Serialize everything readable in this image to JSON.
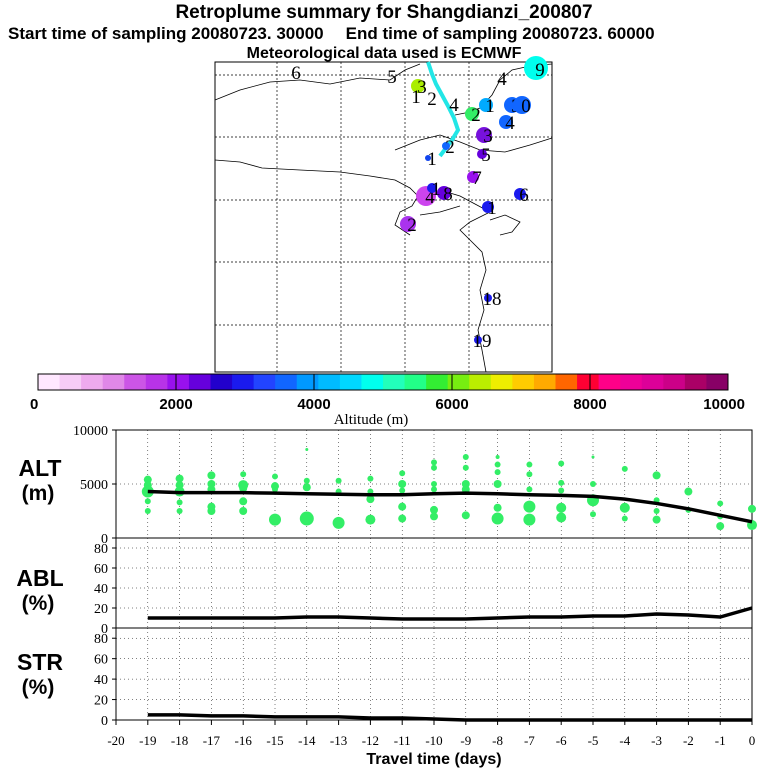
{
  "header": {
    "title": "Retroplume summary for Shangdianzi_200807",
    "start_label": "Start time of sampling 20080723. 30000",
    "end_label": "End time of sampling 20080723. 60000",
    "met_label": "Meteorological data used is ECMWF"
  },
  "colors": {
    "trajectory": "#22e6e6",
    "scatter": "#33ee66",
    "scale": [
      "#ffe8ff",
      "#f6ccf6",
      "#eeaaee",
      "#e088e8",
      "#cc55e6",
      "#b833e8",
      "#9911ee",
      "#6600dd",
      "#2200cc",
      "#1a1aee",
      "#2244ff",
      "#1166ff",
      "#0099ff",
      "#00bbff",
      "#00d8ff",
      "#00ffee",
      "#22ffbb",
      "#22ff88",
      "#33ee33",
      "#77ee11",
      "#bbee00",
      "#eeee00",
      "#ffcc00",
      "#ffaa00",
      "#ff6600",
      "#ff0033",
      "#ff0088",
      "#ee0099",
      "#dd0099",
      "#cc0088",
      "#aa0066",
      "#880066"
    ]
  },
  "map": {
    "markers": [
      {
        "label": "6",
        "color": "#00ffee"
      },
      {
        "label": "5",
        "color": "#00ffee"
      },
      {
        "label": "4",
        "color": "#00ffee"
      },
      {
        "label": "3",
        "color": "#aaee00"
      },
      {
        "label": "1",
        "color": "#1166ff"
      },
      {
        "label": "2",
        "color": "#1166ff"
      },
      {
        "label": "4",
        "color": "#1166ff"
      },
      {
        "label": "1",
        "color": "#00aaff"
      },
      {
        "label": "3",
        "color": "#1166ff"
      },
      {
        "label": "0",
        "color": "#1166ff"
      },
      {
        "label": "2",
        "color": "#33ee66"
      },
      {
        "label": "4",
        "color": "#1166ff"
      },
      {
        "label": "3",
        "color": "#7711dd"
      },
      {
        "label": "2",
        "color": "#1166ff"
      },
      {
        "label": "5",
        "color": "#6600dd"
      },
      {
        "label": "1",
        "color": "#1144ee"
      },
      {
        "label": "7",
        "color": "#9911ee"
      },
      {
        "label": "4",
        "color": "#cc44ee"
      },
      {
        "label": "8",
        "color": "#6600dd"
      },
      {
        "label": "2",
        "color": "#aa33ee"
      },
      {
        "label": "1",
        "color": "#1a1aee"
      },
      {
        "label": "1",
        "color": "#1a1aee"
      },
      {
        "label": "6",
        "color": "#1a1aee"
      },
      {
        "label": "18",
        "color": "#1a1aee"
      },
      {
        "label": "19",
        "color": "#1a1aee"
      }
    ],
    "corner_marker": {
      "label": "9",
      "color": "#00ffee"
    }
  },
  "colorbar": {
    "tick_labels": [
      "0",
      "2000",
      "4000",
      "6000",
      "8000",
      "10000"
    ],
    "title": "Altitude (m)"
  },
  "panels": {
    "alt": {
      "label_top": "ALT",
      "label_bottom": "(m)",
      "ticks": [
        "10000",
        "5000",
        "0"
      ]
    },
    "abl": {
      "label_top": "ABL",
      "label_bottom": "(%)",
      "ticks": [
        "80",
        "60",
        "40",
        "20",
        "0"
      ]
    },
    "str": {
      "label_top": "STR",
      "label_bottom": "(%)",
      "ticks": [
        "80",
        "60",
        "40",
        "20",
        "0"
      ]
    }
  },
  "chart_data": {
    "type": "line",
    "title": "Retroplume summary for Shangdianzi_200807",
    "xlabel": "Travel time (days)",
    "xlim": [
      -20,
      0
    ],
    "x_tick_labels": [
      "-20",
      "-19",
      "-18",
      "-17",
      "-16",
      "-15",
      "-14",
      "-13",
      "-12",
      "-11",
      "-10",
      "-9",
      "-8",
      "-7",
      "-6",
      "-5",
      "-4",
      "-3",
      "-2",
      "-1",
      "0"
    ],
    "series": [
      {
        "name": "ALT",
        "ylabel": "ALT (m)",
        "ylim": [
          0,
          10000
        ],
        "x": [
          -19,
          -18,
          -17,
          -16,
          -15,
          -14,
          -13,
          -12,
          -11,
          -10,
          -9,
          -8,
          -7,
          -6,
          -5,
          -4,
          -3,
          -2,
          -1,
          0
        ],
        "values": [
          4300,
          4200,
          4200,
          4200,
          4150,
          4100,
          4050,
          4000,
          4000,
          4100,
          4150,
          4100,
          4000,
          3950,
          3850,
          3600,
          3200,
          2700,
          2100,
          1500
        ]
      },
      {
        "name": "ABL",
        "ylabel": "ABL (%)",
        "ylim": [
          0,
          90
        ],
        "x": [
          -19,
          -18,
          -17,
          -16,
          -15,
          -14,
          -13,
          -12,
          -11,
          -10,
          -9,
          -8,
          -7,
          -6,
          -5,
          -4,
          -3,
          -2,
          -1,
          0
        ],
        "values": [
          10,
          10,
          10,
          10,
          10,
          11,
          11,
          10,
          9,
          9,
          9,
          10,
          11,
          11,
          12,
          12,
          14,
          13,
          11,
          20
        ]
      },
      {
        "name": "STR",
        "ylabel": "STR (%)",
        "ylim": [
          0,
          90
        ],
        "x": [
          -19,
          -18,
          -17,
          -16,
          -15,
          -14,
          -13,
          -12,
          -11,
          -10,
          -9,
          -8,
          -7,
          -6,
          -5,
          -4,
          -3,
          -2,
          -1,
          0
        ],
        "values": [
          5,
          5,
          4,
          4,
          3,
          3,
          3,
          2,
          2,
          1,
          0,
          0,
          0,
          0,
          0,
          0,
          0,
          0,
          0,
          0
        ]
      }
    ],
    "alt_scatter": [
      {
        "x": -19,
        "y": 5400,
        "s": 4
      },
      {
        "x": -19,
        "y": 4900,
        "s": 4
      },
      {
        "x": -19,
        "y": 4300,
        "s": 6
      },
      {
        "x": -19,
        "y": 3400,
        "s": 3
      },
      {
        "x": -19,
        "y": 2500,
        "s": 3
      },
      {
        "x": -18,
        "y": 5500,
        "s": 4
      },
      {
        "x": -18,
        "y": 4900,
        "s": 4
      },
      {
        "x": -18,
        "y": 4300,
        "s": 5
      },
      {
        "x": -18,
        "y": 3300,
        "s": 3
      },
      {
        "x": -18,
        "y": 2500,
        "s": 3
      },
      {
        "x": -17,
        "y": 5800,
        "s": 4
      },
      {
        "x": -17,
        "y": 5000,
        "s": 4
      },
      {
        "x": -17,
        "y": 4500,
        "s": 4
      },
      {
        "x": -17,
        "y": 2900,
        "s": 4
      },
      {
        "x": -17,
        "y": 2500,
        "s": 4
      },
      {
        "x": -16,
        "y": 5900,
        "s": 3
      },
      {
        "x": -16,
        "y": 4900,
        "s": 5
      },
      {
        "x": -16,
        "y": 4600,
        "s": 4
      },
      {
        "x": -16,
        "y": 3400,
        "s": 4
      },
      {
        "x": -16,
        "y": 2500,
        "s": 4
      },
      {
        "x": -15,
        "y": 5700,
        "s": 3
      },
      {
        "x": -15,
        "y": 4800,
        "s": 4
      },
      {
        "x": -15,
        "y": 4500,
        "s": 3
      },
      {
        "x": -15,
        "y": 1700,
        "s": 6
      },
      {
        "x": -14,
        "y": 8200,
        "s": 1.5
      },
      {
        "x": -14,
        "y": 5300,
        "s": 3
      },
      {
        "x": -14,
        "y": 4700,
        "s": 4
      },
      {
        "x": -14,
        "y": 1800,
        "s": 7
      },
      {
        "x": -13,
        "y": 5300,
        "s": 3
      },
      {
        "x": -13,
        "y": 4300,
        "s": 3
      },
      {
        "x": -13,
        "y": 1400,
        "s": 6
      },
      {
        "x": -12,
        "y": 5500,
        "s": 3
      },
      {
        "x": -12,
        "y": 4300,
        "s": 3
      },
      {
        "x": -12,
        "y": 3600,
        "s": 4
      },
      {
        "x": -12,
        "y": 1700,
        "s": 5
      },
      {
        "x": -11,
        "y": 6000,
        "s": 3
      },
      {
        "x": -11,
        "y": 5000,
        "s": 4
      },
      {
        "x": -11,
        "y": 4400,
        "s": 3
      },
      {
        "x": -11,
        "y": 2900,
        "s": 4
      },
      {
        "x": -11,
        "y": 1800,
        "s": 4
      },
      {
        "x": -10,
        "y": 7000,
        "s": 3
      },
      {
        "x": -10,
        "y": 6500,
        "s": 3
      },
      {
        "x": -10,
        "y": 5000,
        "s": 3
      },
      {
        "x": -10,
        "y": 4500,
        "s": 3
      },
      {
        "x": -10,
        "y": 2600,
        "s": 4
      },
      {
        "x": -10,
        "y": 2000,
        "s": 4
      },
      {
        "x": -9,
        "y": 7500,
        "s": 3
      },
      {
        "x": -9,
        "y": 6500,
        "s": 3
      },
      {
        "x": -9,
        "y": 5000,
        "s": 4
      },
      {
        "x": -9,
        "y": 4500,
        "s": 4
      },
      {
        "x": -9,
        "y": 2100,
        "s": 4
      },
      {
        "x": -8,
        "y": 7500,
        "s": 2
      },
      {
        "x": -8,
        "y": 6800,
        "s": 3
      },
      {
        "x": -8,
        "y": 6100,
        "s": 3
      },
      {
        "x": -8,
        "y": 5000,
        "s": 4
      },
      {
        "x": -8,
        "y": 2800,
        "s": 4
      },
      {
        "x": -8,
        "y": 1800,
        "s": 6
      },
      {
        "x": -7,
        "y": 6800,
        "s": 3
      },
      {
        "x": -7,
        "y": 5900,
        "s": 3
      },
      {
        "x": -7,
        "y": 4500,
        "s": 3
      },
      {
        "x": -7,
        "y": 2900,
        "s": 6
      },
      {
        "x": -7,
        "y": 1700,
        "s": 6
      },
      {
        "x": -6,
        "y": 6900,
        "s": 3
      },
      {
        "x": -6,
        "y": 5100,
        "s": 3
      },
      {
        "x": -6,
        "y": 4400,
        "s": 3
      },
      {
        "x": -6,
        "y": 2800,
        "s": 5
      },
      {
        "x": -6,
        "y": 1900,
        "s": 5
      },
      {
        "x": -5,
        "y": 7500,
        "s": 1.5
      },
      {
        "x": -5,
        "y": 5000,
        "s": 3
      },
      {
        "x": -5,
        "y": 3500,
        "s": 6
      },
      {
        "x": -5,
        "y": 2200,
        "s": 3
      },
      {
        "x": -4,
        "y": 6400,
        "s": 3
      },
      {
        "x": -4,
        "y": 2800,
        "s": 5
      },
      {
        "x": -4,
        "y": 1800,
        "s": 3
      },
      {
        "x": -3,
        "y": 5800,
        "s": 4
      },
      {
        "x": -3,
        "y": 3500,
        "s": 3
      },
      {
        "x": -3,
        "y": 2500,
        "s": 3
      },
      {
        "x": -3,
        "y": 1700,
        "s": 4
      },
      {
        "x": -2,
        "y": 4300,
        "s": 4
      },
      {
        "x": -2,
        "y": 2600,
        "s": 3
      },
      {
        "x": -1,
        "y": 3200,
        "s": 3
      },
      {
        "x": -1,
        "y": 2000,
        "s": 3
      },
      {
        "x": -1,
        "y": 1100,
        "s": 4
      },
      {
        "x": 0,
        "y": 2700,
        "s": 4
      },
      {
        "x": 0,
        "y": 1200,
        "s": 5
      }
    ]
  }
}
